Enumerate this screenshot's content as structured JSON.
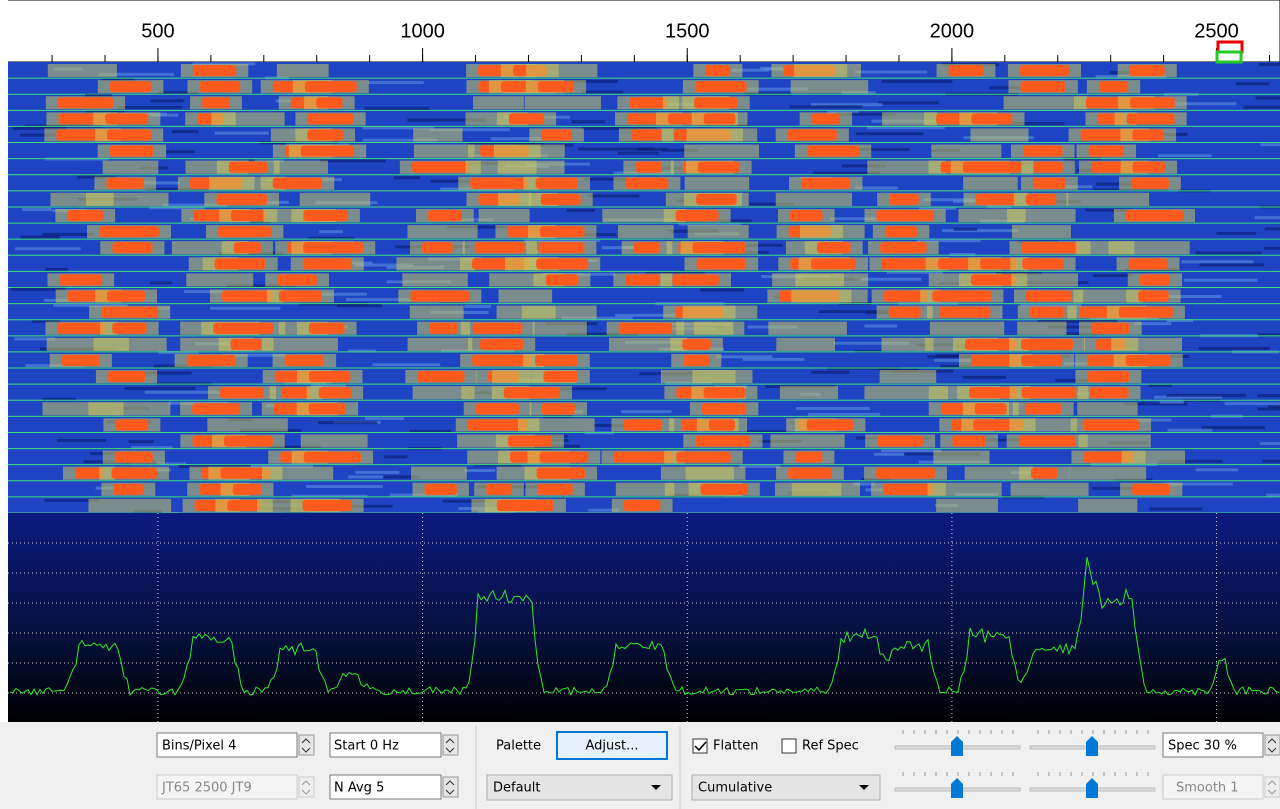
{
  "frequency_scale": {
    "ticks": [
      500,
      1000,
      1500,
      2000,
      2500
    ]
  },
  "controls": {
    "bins_per_pixel": "Bins/Pixel 4",
    "start": "Start 0 Hz",
    "mode": "JT65 2500 JT9",
    "n_avg": "N Avg 5",
    "palette_label": "Palette",
    "adjust_button": "Adjust...",
    "palette_select": "Default",
    "flatten": {
      "label": "Flatten",
      "checked": true
    },
    "ref_spec": {
      "label": "Ref Spec",
      "checked": false
    },
    "spectrum_select": "Cumulative",
    "spec": "Spec 30 %",
    "smooth": "Smooth 1"
  }
}
